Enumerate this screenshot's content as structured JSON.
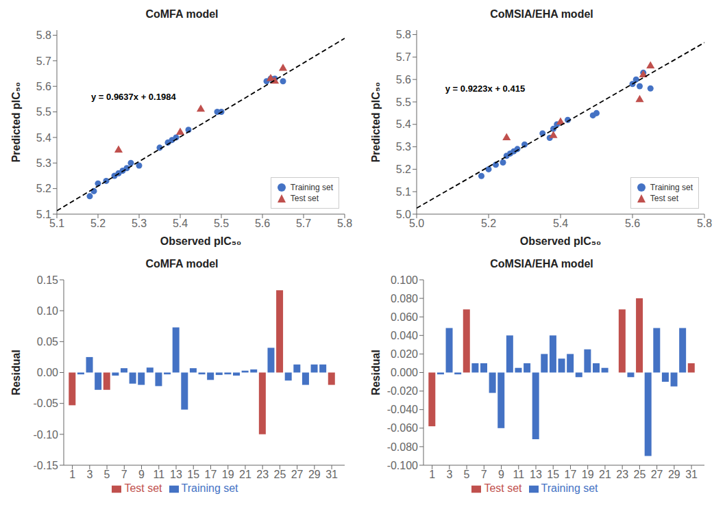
{
  "chart_data": [
    {
      "type": "scatter",
      "title": "CoMFA model",
      "xlabel": "Observed pIC₅₀",
      "ylabel": "Predicted pIC₅₀",
      "series": [
        {
          "name": "Training set",
          "type": "scatter",
          "marker": "circle",
          "color": "#4472C4",
          "x": [
            5.18,
            5.19,
            5.2,
            5.22,
            5.24,
            5.25,
            5.26,
            5.27,
            5.28,
            5.3,
            5.35,
            5.37,
            5.38,
            5.39,
            5.42,
            5.49,
            5.5,
            5.61,
            5.62,
            5.63,
            5.65
          ],
          "values": [
            5.17,
            5.19,
            5.22,
            5.23,
            5.25,
            5.26,
            5.27,
            5.28,
            5.3,
            5.29,
            5.36,
            5.38,
            5.39,
            5.4,
            5.43,
            5.5,
            5.5,
            5.62,
            5.63,
            5.63,
            5.62
          ]
        },
        {
          "name": "Test set",
          "type": "scatter",
          "marker": "triangle",
          "color": "#C0504D",
          "x": [
            5.25,
            5.4,
            5.45,
            5.62,
            5.63,
            5.65
          ],
          "values": [
            5.35,
            5.42,
            5.51,
            5.63,
            5.62,
            5.67
          ]
        },
        {
          "type": "line",
          "color": "#000000",
          "line_style": "dashed",
          "x": [
            5.1,
            5.8
          ],
          "values": [
            5.11327,
            5.78786
          ]
        }
      ],
      "annotations": [
        {
          "text": "y = 0.9637x + 0.1984",
          "x": 5.175,
          "y": 5.56
        }
      ],
      "xlim": [
        5.1,
        5.8
      ],
      "xticks": [
        5.1,
        5.2,
        5.3,
        5.4,
        5.5,
        5.6,
        5.7,
        5.8
      ],
      "ylim": [
        5.1,
        5.82
      ],
      "yticks": [
        5.1,
        5.2,
        5.3,
        5.4,
        5.5,
        5.6,
        5.7,
        5.8
      ],
      "legend": "lower right",
      "grid": false
    },
    {
      "type": "scatter",
      "title": "CoMSIA/EHA model",
      "xlabel": "Observed pIC₅₀",
      "ylabel": "Predicted pIC₅₀",
      "series": [
        {
          "name": "Training set",
          "type": "scatter",
          "marker": "circle",
          "color": "#4472C4",
          "x": [
            5.18,
            5.2,
            5.22,
            5.24,
            5.25,
            5.26,
            5.27,
            5.28,
            5.3,
            5.35,
            5.37,
            5.38,
            5.39,
            5.42,
            5.49,
            5.5,
            5.6,
            5.61,
            5.62,
            5.63,
            5.65
          ],
          "values": [
            5.17,
            5.2,
            5.22,
            5.23,
            5.26,
            5.27,
            5.28,
            5.29,
            5.31,
            5.36,
            5.34,
            5.38,
            5.4,
            5.42,
            5.44,
            5.45,
            5.58,
            5.6,
            5.57,
            5.63,
            5.56
          ]
        },
        {
          "name": "Test set",
          "type": "scatter",
          "marker": "triangle",
          "color": "#C0504D",
          "x": [
            5.25,
            5.38,
            5.4,
            5.62,
            5.63,
            5.65
          ],
          "values": [
            5.34,
            5.35,
            5.41,
            5.51,
            5.62,
            5.66
          ]
        },
        {
          "type": "line",
          "color": "#000000",
          "line_style": "dashed",
          "x": [
            5.0,
            5.8
          ],
          "values": [
            5.0265,
            5.76434
          ]
        }
      ],
      "annotations": [
        {
          "text": "y = 0.9223x + 0.415",
          "x": 5.07,
          "y": 5.56
        }
      ],
      "xlim": [
        5.0,
        5.8
      ],
      "xticks": [
        {
          "value": 5.0,
          "label": "5.0"
        },
        5.2,
        5.4,
        5.6,
        5.8
      ],
      "ylim": [
        5.0,
        5.82
      ],
      "yticks": [
        {
          "value": 5.0,
          "label": "5.0"
        },
        5.1,
        5.2,
        5.3,
        5.4,
        5.5,
        5.6,
        5.7,
        5.8
      ],
      "legend": "lower right",
      "grid": false
    },
    {
      "type": "bar",
      "title": "CoMFA model",
      "ylabel": "Residual",
      "x": [
        1,
        2,
        3,
        4,
        5,
        6,
        7,
        8,
        9,
        10,
        11,
        12,
        13,
        14,
        15,
        16,
        17,
        18,
        19,
        20,
        21,
        22,
        23,
        24,
        25,
        26,
        27,
        28,
        29,
        30,
        31
      ],
      "series": [
        {
          "name": "Test set",
          "color": "#C0504D",
          "values": [
            -0.053,
            null,
            null,
            null,
            -0.028,
            null,
            null,
            null,
            null,
            null,
            null,
            null,
            null,
            null,
            null,
            null,
            null,
            null,
            null,
            null,
            null,
            null,
            -0.1,
            null,
            0.133,
            null,
            null,
            null,
            null,
            null,
            -0.02
          ]
        },
        {
          "name": "Training set",
          "color": "#4472C4",
          "values": [
            null,
            -0.003,
            0.025,
            -0.028,
            null,
            -0.005,
            0.007,
            -0.018,
            -0.02,
            0.008,
            -0.022,
            -0.003,
            0.073,
            -0.06,
            0.007,
            -0.003,
            -0.012,
            -0.004,
            -0.003,
            -0.005,
            0.003,
            0.005,
            null,
            0.04,
            null,
            -0.013,
            0.013,
            -0.02,
            0.013,
            0.013,
            null
          ]
        }
      ],
      "xlim": [
        0,
        32.5
      ],
      "xticks": [
        1,
        3,
        5,
        7,
        9,
        11,
        13,
        15,
        17,
        19,
        21,
        23,
        25,
        27,
        29,
        31
      ],
      "ylim": [
        -0.15,
        0.15
      ],
      "yticks": [
        -0.15,
        {
          "value": -0.1,
          "label": "-0.10"
        },
        -0.05,
        {
          "value": 0,
          "label": "0.00"
        },
        0.05,
        {
          "value": 0.1,
          "label": "0.10"
        },
        0.15
      ],
      "legend": "lower center",
      "grid": false
    },
    {
      "type": "bar",
      "title": "CoMSIA/EHA model",
      "ylabel": "Residual",
      "x": [
        1,
        2,
        3,
        4,
        5,
        6,
        7,
        8,
        9,
        10,
        11,
        12,
        13,
        14,
        15,
        16,
        17,
        18,
        19,
        20,
        21,
        22,
        23,
        24,
        25,
        26,
        27,
        28,
        29,
        30,
        31
      ],
      "series": [
        {
          "name": "Training set",
          "color": "#4472C4",
          "values": [
            null,
            -0.002,
            0.048,
            -0.002,
            null,
            0.01,
            0.01,
            -0.022,
            -0.06,
            0.04,
            0.005,
            0.01,
            -0.072,
            0.02,
            0.04,
            0.015,
            0.02,
            -0.005,
            0.025,
            0.01,
            0.005,
            null,
            null,
            -0.005,
            null,
            -0.09,
            0.048,
            -0.01,
            -0.015,
            0.048,
            null
          ]
        },
        {
          "name": "Test set",
          "color": "#C0504D",
          "values": [
            -0.058,
            null,
            null,
            null,
            0.068,
            null,
            null,
            null,
            null,
            null,
            null,
            null,
            null,
            null,
            null,
            null,
            null,
            null,
            null,
            null,
            null,
            0,
            0.068,
            null,
            0.08,
            null,
            null,
            null,
            null,
            null,
            0.01
          ]
        }
      ],
      "xlim": [
        0,
        32.5
      ],
      "xticks": [
        1,
        3,
        5,
        7,
        9,
        11,
        13,
        15,
        17,
        19,
        21,
        23,
        25,
        27,
        29,
        31
      ],
      "ylim": [
        -0.1,
        0.1
      ],
      "yticks": [
        {
          "value": -0.1,
          "label": "-0.100"
        },
        {
          "value": -0.08,
          "label": "-0.080"
        },
        {
          "value": -0.06,
          "label": "-0.060"
        },
        {
          "value": -0.04,
          "label": "-0.040"
        },
        {
          "value": -0.02,
          "label": "-0.020"
        },
        {
          "value": 0,
          "label": "0.000"
        },
        {
          "value": 0.02,
          "label": "0.020"
        },
        {
          "value": 0.04,
          "label": "0.040"
        },
        {
          "value": 0.06,
          "label": "0.060"
        },
        {
          "value": 0.08,
          "label": "0.080"
        },
        {
          "value": 0.1,
          "label": "0.100"
        }
      ],
      "legend": "lower center",
      "grid": false
    }
  ]
}
